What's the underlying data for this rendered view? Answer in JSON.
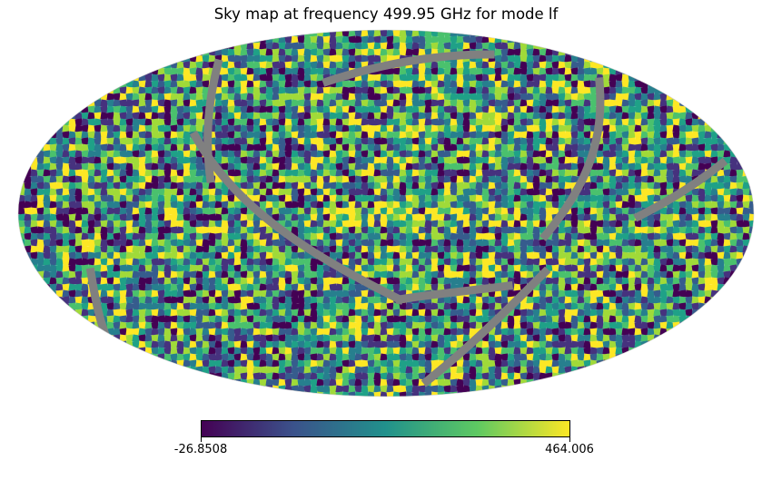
{
  "title": "Sky map at frequency 499.95 GHz for mode lf",
  "colorbar": {
    "min_label": "-26.8508",
    "max_label": "464.006",
    "min_value": -26.8508,
    "max_value": 464.006,
    "colormap": "viridis",
    "colors": [
      "#440154",
      "#3b528b",
      "#21918c",
      "#5ec962",
      "#fde725"
    ]
  },
  "map": {
    "projection": "mollweide",
    "masked_color": "#808080",
    "background": "#ffffff"
  }
}
